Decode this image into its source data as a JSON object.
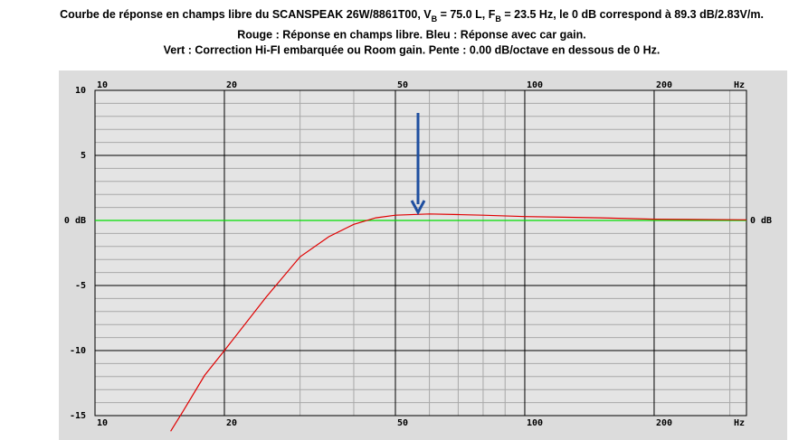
{
  "chart_data": {
    "type": "line",
    "title": [
      "Courbe de réponse en champs libre du SCANSPEAK 26W/8861T00, V",
      "B",
      " = 75.0 L, F",
      "B",
      " = 23.5 Hz, le 0 dB correspond à 89.3 dB/2.83V/m."
    ],
    "subtitle": [
      "Rouge : Réponse en champs libre. Bleu : Réponse avec car gain.",
      "Vert : Correction Hi-FI embarquée ou Room gain. Pente : 0.00 dB/octave en dessous de 0 Hz."
    ],
    "x_unit": "Hz",
    "log_x": true,
    "xlim": [
      10,
      328
    ],
    "xticks": [
      10,
      20,
      50,
      100,
      200
    ],
    "xminor_ticks": [
      30,
      40,
      60,
      70,
      80,
      90,
      300
    ],
    "ylim": [
      -15,
      10
    ],
    "yticks": [
      {
        "value": 10,
        "label": "10"
      },
      {
        "value": 5,
        "label": "5"
      },
      {
        "value": 0,
        "label": "0 dB"
      },
      {
        "value": -5,
        "label": "-5"
      },
      {
        "value": -10,
        "label": "-10"
      },
      {
        "value": -15,
        "label": "-15"
      }
    ],
    "yminor_ticks": [
      -14,
      -13,
      -12,
      -11,
      -9,
      -8,
      -7,
      -6,
      -4,
      -3,
      -2,
      -1,
      1,
      2,
      3,
      4,
      6,
      7,
      8,
      9
    ],
    "grid": true,
    "series": [
      {
        "color": "#e00000",
        "x": [
          15,
          16,
          18,
          20,
          25,
          30,
          35,
          40,
          45,
          50,
          60,
          70,
          80,
          100,
          150,
          200,
          328
        ],
        "values": [
          -16.2,
          -14.7,
          -11.9,
          -10,
          -5.9,
          -2.8,
          -1.25,
          -0.3,
          0.2,
          0.4,
          0.5,
          0.45,
          0.4,
          0.3,
          0.2,
          0.1,
          0.05
        ]
      },
      {
        "color": "#00dd00",
        "x": [
          10,
          328
        ],
        "values": [
          0,
          0
        ]
      }
    ]
  }
}
